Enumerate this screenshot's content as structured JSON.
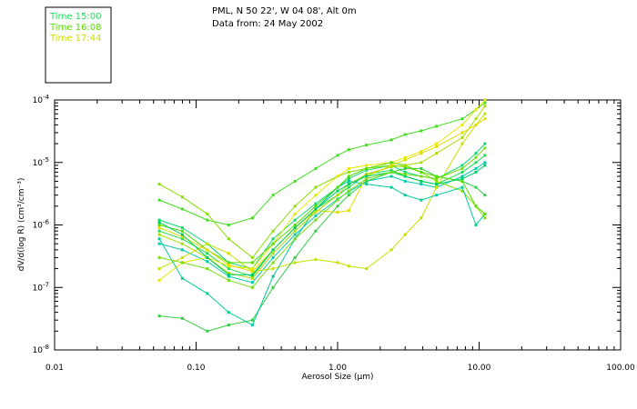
{
  "chart_data": {
    "type": "line",
    "title": [
      "PML, N 50 22', W 04 08', Alt 0m",
      "Data from: 24 May 2002"
    ],
    "xlabel": "Aerosol Size (μm)",
    "ylabel": "dV/d(log R) (cm³/cm⁻³)",
    "xscale": "log",
    "yscale": "log",
    "xlim": [
      0.01,
      100
    ],
    "ylim": [
      1e-08,
      0.0001
    ],
    "x_ticks": [
      {
        "value": 0.01,
        "label": "0.01"
      },
      {
        "value": 0.1,
        "label": "0.10"
      },
      {
        "value": 1,
        "label": "1.00"
      },
      {
        "value": 10,
        "label": "10.00"
      },
      {
        "value": 100,
        "label": "100.00"
      }
    ],
    "y_ticks": [
      {
        "value": 1e-08,
        "base": "10",
        "exp": "-8"
      },
      {
        "value": 1e-07,
        "base": "10",
        "exp": "-7"
      },
      {
        "value": 1e-06,
        "base": "10",
        "exp": "-6"
      },
      {
        "value": 1e-05,
        "base": "10",
        "exp": "-5"
      },
      {
        "value": 0.0001,
        "base": "10",
        "exp": "-4"
      }
    ],
    "legend": [
      {
        "label": "Time 15:00",
        "color": "#22dd55"
      },
      {
        "label": "Time 16:08",
        "color": "#55dd00"
      },
      {
        "label": "Time 17:44",
        "color": "#c8e000"
      }
    ],
    "x": [
      0.055,
      0.08,
      0.12,
      0.17,
      0.25,
      0.35,
      0.5,
      0.7,
      1.0,
      1.2,
      1.6,
      2.4,
      3.0,
      3.9,
      5.0,
      7.6,
      9.5,
      11.0
    ],
    "series": [
      {
        "name": "s1",
        "color": "#22dd55",
        "values": [
          8e-07,
          6e-07,
          3.5e-07,
          2e-07,
          1.5e-07,
          4e-07,
          9e-07,
          1.8e-06,
          3e-06,
          4e-06,
          6.5e-06,
          7.5e-06,
          6e-06,
          5e-06,
          4.5e-06,
          7e-06,
          1e-05,
          1.3e-05
        ]
      },
      {
        "name": "s2",
        "color": "#00ccaa",
        "values": [
          5e-07,
          4e-07,
          2.6e-07,
          1.5e-07,
          1.2e-07,
          3e-07,
          7e-07,
          1.4e-06,
          2.6e-06,
          3.4e-06,
          5e-06,
          6e-06,
          5e-06,
          4.5e-06,
          4e-06,
          6e-06,
          8e-06,
          1e-05
        ]
      },
      {
        "name": "s3",
        "color": "#11d877",
        "values": [
          1.2e-06,
          9e-07,
          5e-07,
          2.5e-07,
          2e-07,
          6e-07,
          1.2e-06,
          2.2e-06,
          4e-06,
          5.5e-06,
          7.5e-06,
          9e-06,
          7e-06,
          6e-06,
          5.5e-06,
          9e-06,
          1.4e-05,
          2e-05
        ]
      },
      {
        "name": "s4",
        "color": "#44dd22",
        "values": [
          2.5e-06,
          1.8e-06,
          1.2e-06,
          1e-06,
          1.3e-06,
          3e-06,
          5e-06,
          8e-06,
          1.3e-05,
          1.6e-05,
          1.9e-05,
          2.3e-05,
          2.8e-05,
          3.2e-05,
          3.8e-05,
          5e-05,
          7e-05,
          9e-05
        ]
      },
      {
        "name": "s5",
        "color": "#88e000",
        "values": [
          4.5e-06,
          2.8e-06,
          1.5e-06,
          6e-07,
          3e-07,
          8e-07,
          2e-06,
          4e-06,
          6e-06,
          7e-06,
          8e-06,
          9e-06,
          8.5e-06,
          7e-06,
          5e-06,
          3.5e-06,
          2e-06,
          1.3e-06
        ]
      },
      {
        "name": "s6",
        "color": "#c8e000",
        "values": [
          2e-07,
          3e-07,
          5e-07,
          3.5e-07,
          1.8e-07,
          2e-07,
          2.5e-07,
          2.8e-07,
          2.5e-07,
          2.2e-07,
          2e-07,
          4e-07,
          7e-07,
          1.3e-06,
          4e-06,
          2e-05,
          4e-05,
          6e-05
        ]
      },
      {
        "name": "s7",
        "color": "#e8e800",
        "values": [
          1.3e-07,
          2.5e-07,
          3e-07,
          2.2e-07,
          2e-07,
          5e-07,
          1.5e-06,
          3e-06,
          6e-06,
          8e-06,
          9e-06,
          1e-05,
          1.2e-05,
          1.5e-05,
          2e-05,
          4e-05,
          7e-05,
          0.0001
        ]
      },
      {
        "name": "s8",
        "color": "#33cc44",
        "values": [
          3.5e-08,
          3.2e-08,
          2e-08,
          2.5e-08,
          3e-08,
          1e-07,
          3e-07,
          8e-07,
          2e-06,
          3e-06,
          5e-06,
          7e-06,
          8e-06,
          8e-06,
          6e-06,
          5e-06,
          4e-06,
          3e-06
        ]
      },
      {
        "name": "s9",
        "color": "#00cc99",
        "values": [
          6e-07,
          1.4e-07,
          8e-08,
          4e-08,
          2.5e-08,
          1.5e-07,
          6e-07,
          1.8e-06,
          4e-06,
          5e-06,
          4.5e-06,
          4e-06,
          3e-06,
          2.5e-06,
          3e-06,
          4e-06,
          1e-06,
          1.5e-06
        ]
      },
      {
        "name": "s10",
        "color": "#55dd00",
        "values": [
          1e-06,
          8e-07,
          4e-07,
          2.5e-07,
          2.5e-07,
          5e-07,
          1e-06,
          2e-06,
          4e-06,
          6e-06,
          8e-06,
          1e-05,
          9e-06,
          7e-06,
          6e-06,
          5e-06,
          2e-06,
          1.5e-06
        ]
      },
      {
        "name": "s11",
        "color": "#aadd00",
        "values": [
          7e-07,
          5e-07,
          3e-07,
          1.7e-07,
          1.4e-07,
          3.5e-07,
          8e-07,
          1.6e-06,
          3e-06,
          4.5e-06,
          6.5e-06,
          8.5e-06,
          9e-06,
          1e-05,
          1.4e-05,
          2.5e-05,
          5e-05,
          8e-05
        ]
      },
      {
        "name": "s12",
        "color": "#dddd00",
        "values": [
          9e-07,
          6.5e-07,
          4e-07,
          2.3e-07,
          1.8e-07,
          4e-07,
          9e-07,
          1.7e-06,
          1.6e-06,
          1.7e-06,
          6e-06,
          9e-06,
          1.1e-05,
          1.4e-05,
          1.8e-05,
          3e-05,
          4e-05,
          5e-05
        ]
      },
      {
        "name": "s13",
        "color": "#00cc66",
        "values": [
          1.1e-06,
          7e-07,
          3e-07,
          1.6e-07,
          1.6e-07,
          4e-07,
          9e-07,
          1.8e-06,
          3.5e-06,
          4.5e-06,
          6e-06,
          7e-06,
          6e-06,
          5e-06,
          4.5e-06,
          5.5e-06,
          7e-06,
          9e-06
        ]
      },
      {
        "name": "s14",
        "color": "#77dd11",
        "values": [
          3e-07,
          2.5e-07,
          2e-07,
          1.3e-07,
          1e-07,
          2.5e-07,
          6e-07,
          1.2e-06,
          2.5e-06,
          3.5e-06,
          5.5e-06,
          7e-06,
          6.5e-06,
          6e-06,
          5.5e-06,
          8e-06,
          1.2e-05,
          1.7e-05
        ]
      }
    ]
  }
}
